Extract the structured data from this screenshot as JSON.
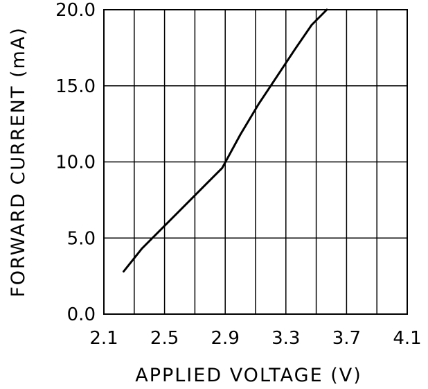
{
  "chart_data": {
    "type": "line",
    "title": "",
    "xlabel": "APPLIED VOLTAGE (V)",
    "ylabel": "FORWARD CURRENT (mA)",
    "xlim": [
      2.1,
      4.1
    ],
    "ylim": [
      0.0,
      20.0
    ],
    "xticks": [
      "2.1",
      "2.5",
      "2.9",
      "3.3",
      "3.7",
      "4.1"
    ],
    "yticks": [
      "0.0",
      "5.0",
      "10.0",
      "15.0",
      "20.0"
    ],
    "grid": true,
    "series": [
      {
        "x": [
          2.23,
          2.35,
          2.5,
          2.65,
          2.78,
          2.88,
          3.0,
          3.12,
          3.24,
          3.36,
          3.47,
          3.57
        ],
        "y": [
          2.8,
          4.3,
          5.8,
          7.3,
          8.6,
          9.6,
          11.8,
          13.8,
          15.6,
          17.4,
          19.0,
          20.0
        ]
      }
    ],
    "colors": {
      "line": "#000000",
      "grid": "#000000",
      "background": "#ffffff"
    }
  }
}
